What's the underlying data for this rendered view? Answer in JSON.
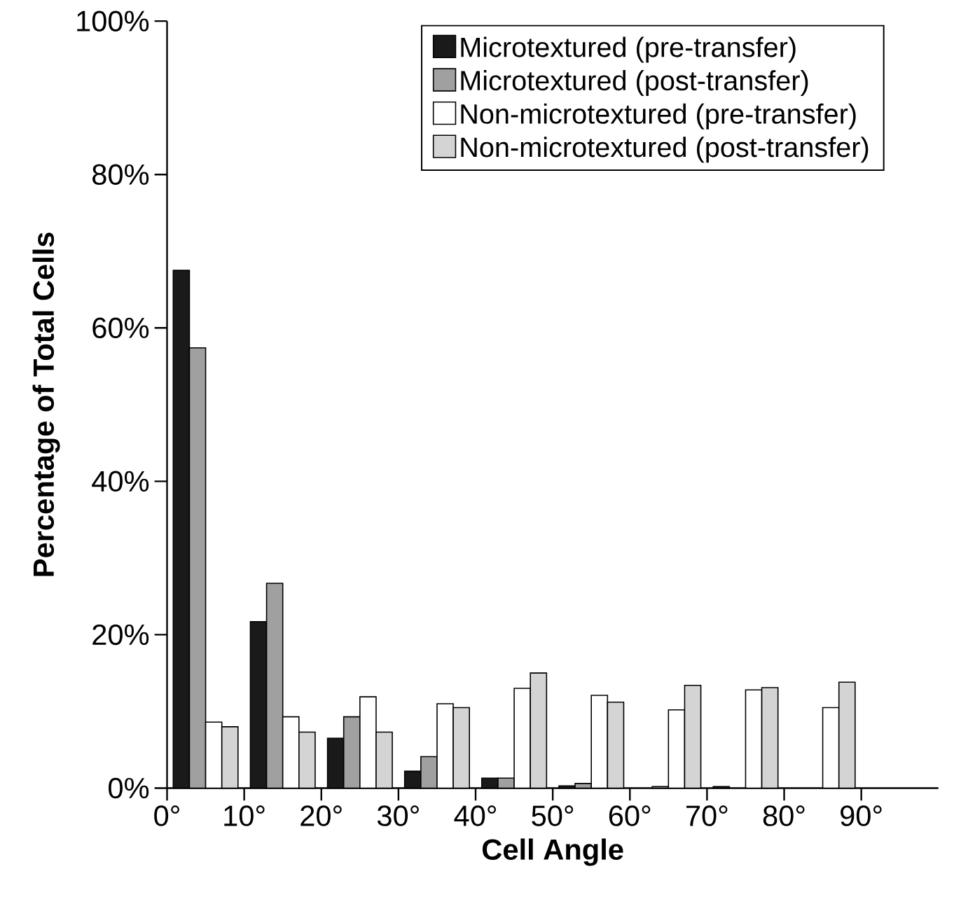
{
  "chart_data": {
    "type": "bar",
    "xlabel": "Cell Angle",
    "ylabel": "Percentage of Total Cells",
    "x": [
      5,
      15,
      25,
      35,
      45,
      55,
      65,
      75,
      85
    ],
    "series": [
      {
        "name": "Microtextured (pre-transfer)",
        "color": "#1a1a1a",
        "values": [
          67.5,
          21.7,
          6.5,
          2.2,
          1.3,
          0.3,
          null,
          0.2,
          null
        ]
      },
      {
        "name": "Microtextured (post-transfer)",
        "color": "#a0a0a0",
        "values": [
          57.4,
          26.7,
          9.3,
          4.1,
          1.3,
          0.6,
          0.2,
          null,
          null
        ]
      },
      {
        "name": "Non-microtextured (pre-transfer)",
        "color": "#ffffff",
        "values": [
          8.6,
          9.3,
          11.9,
          11.0,
          13.0,
          12.1,
          10.2,
          12.8,
          10.5
        ]
      },
      {
        "name": "Non-microtextured (post-transfer)",
        "color": "#d4d4d4",
        "values": [
          8.0,
          7.3,
          7.3,
          10.5,
          15.0,
          11.2,
          13.4,
          13.1,
          13.8
        ]
      }
    ],
    "xlim": [
      0,
      100
    ],
    "xticks": [
      {
        "value": 0,
        "label": "0°"
      },
      {
        "value": 10,
        "label": "10°"
      },
      {
        "value": 20,
        "label": "20°"
      },
      {
        "value": 30,
        "label": "30°"
      },
      {
        "value": 40,
        "label": "40°"
      },
      {
        "value": 50,
        "label": "50°"
      },
      {
        "value": 60,
        "label": "60°"
      },
      {
        "value": 70,
        "label": "70°"
      },
      {
        "value": 80,
        "label": "80°"
      },
      {
        "value": 90,
        "label": "90°"
      }
    ],
    "ylim": [
      0,
      100
    ],
    "yticks": [
      {
        "value": 0,
        "label": "0%"
      },
      {
        "value": 20,
        "label": "20%"
      },
      {
        "value": 40,
        "label": "40%"
      },
      {
        "value": 60,
        "label": "60%"
      },
      {
        "value": 80,
        "label": "80%"
      },
      {
        "value": 100,
        "label": "100%"
      }
    ],
    "legend": "top right"
  }
}
